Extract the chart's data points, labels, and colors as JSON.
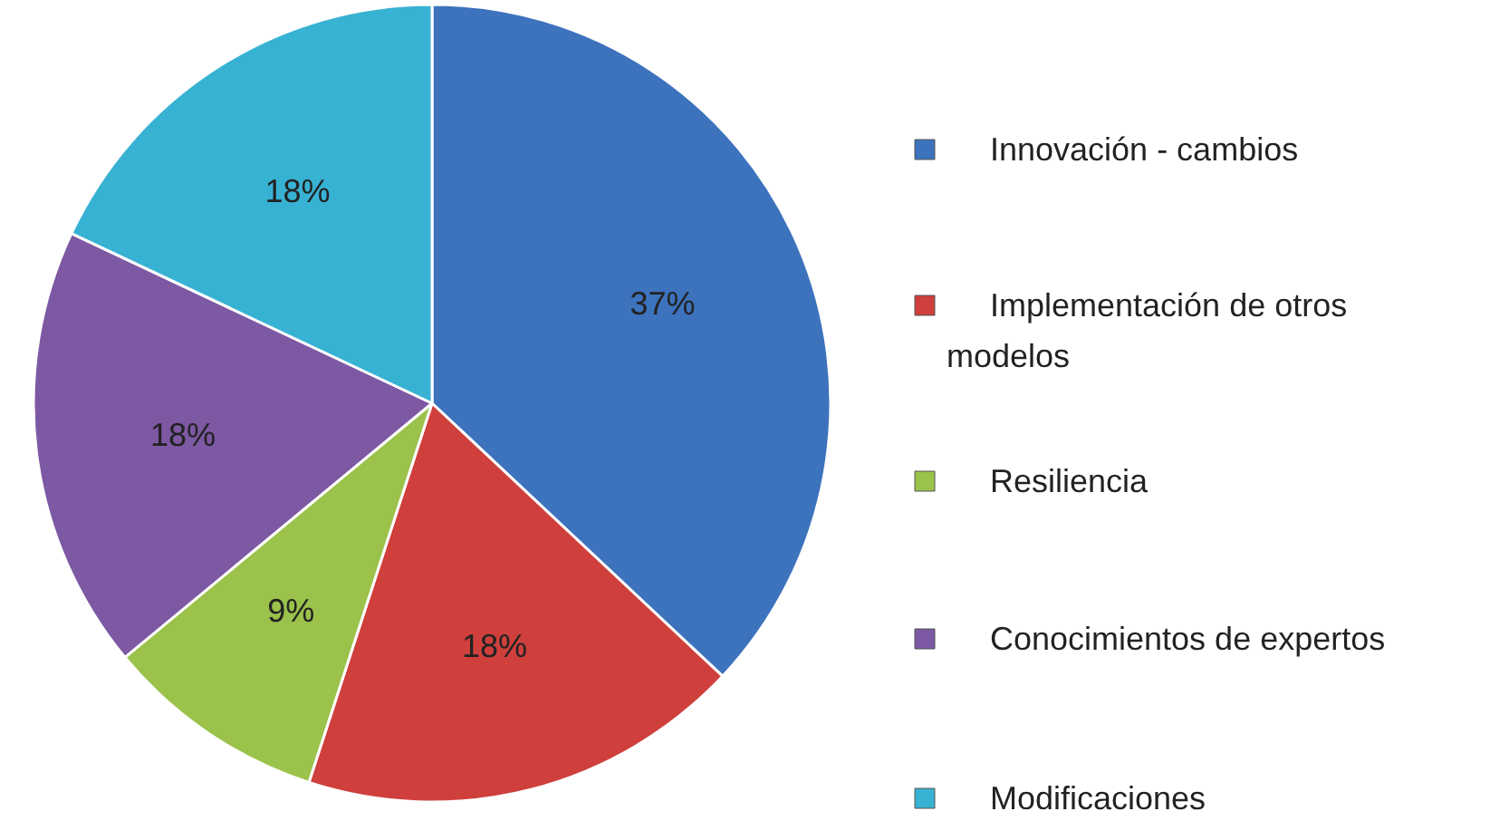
{
  "chart_data": {
    "type": "pie",
    "categories": [
      "Innovación - cambios",
      "Implementación de otros modelos",
      "Resiliencia",
      "Conocimientos de expertos",
      "Modificaciones"
    ],
    "values": [
      37,
      18,
      9,
      18,
      18
    ],
    "colors": [
      "#3d72bd",
      "#cf3f3c",
      "#9bc24a",
      "#7d58a3",
      "#38b2d3"
    ],
    "value_labels": [
      "37%",
      "18%",
      "9%",
      "18%",
      "18%"
    ],
    "legend": "right"
  }
}
